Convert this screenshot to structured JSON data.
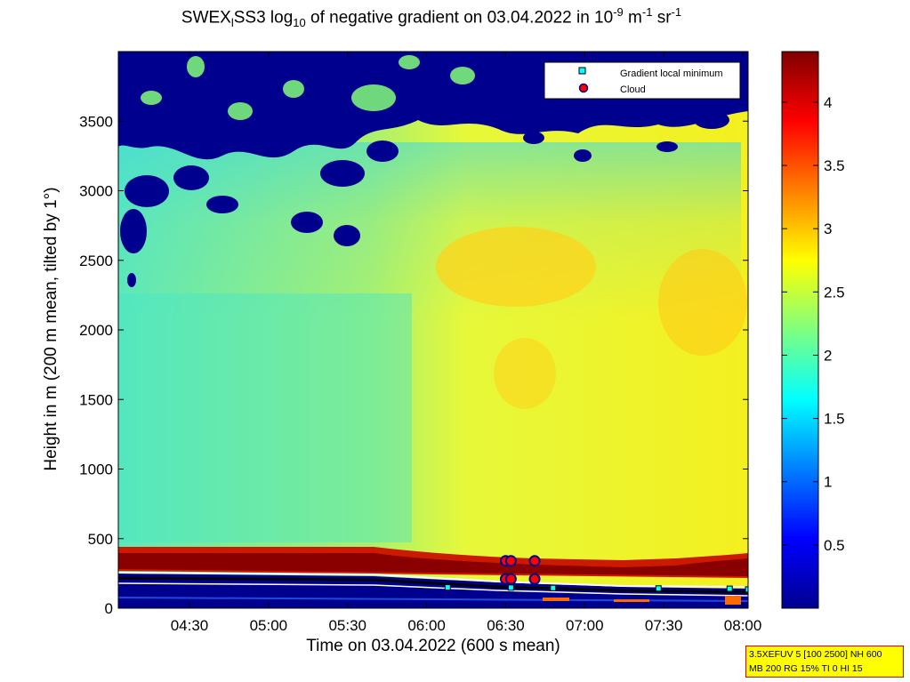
{
  "title": {
    "prefix": "SWEX",
    "sub1": "l",
    "mid": "SS3 log",
    "sub2": "10",
    "rest": " of negative gradient on 03.04.2022 in 10",
    "sup1": "-9",
    "unit1": " m",
    "sup2": "-1",
    "unit2": " sr",
    "sup3": "-1"
  },
  "chart_data": {
    "type": "heatmap",
    "xlabel": "Time on 03.04.2022 (600 s mean)",
    "ylabel": "Height in m (200 m mean, tilted by 1°)",
    "x_range": [
      "04:03",
      "08:02"
    ],
    "xticks": [
      "04:30",
      "05:00",
      "05:30",
      "06:00",
      "06:30",
      "07:00",
      "07:30",
      "08:00"
    ],
    "ylim": [
      0,
      4000
    ],
    "yticks": [
      0,
      500,
      1000,
      1500,
      2000,
      2500,
      3000,
      3500
    ],
    "colorbar": {
      "range": [
        0,
        4.4
      ],
      "ticks": [
        "0.5",
        "1",
        "1.5",
        "2",
        "2.5",
        "3",
        "3.5",
        "4"
      ],
      "colormap": "jet"
    },
    "legend": {
      "position": "top-right",
      "entries": [
        {
          "label": "Gradient local minimum",
          "marker": "square",
          "color": "#00ffff"
        },
        {
          "label": "Cloud",
          "marker": "circle",
          "color": "#ff0000"
        }
      ]
    },
    "clouds": [
      {
        "time": "06:30",
        "height": 340
      },
      {
        "time": "06:32",
        "height": 340
      },
      {
        "time": "06:41",
        "height": 340
      },
      {
        "time": "06:30",
        "height": 210
      },
      {
        "time": "06:32",
        "height": 210
      },
      {
        "time": "06:41",
        "height": 210
      }
    ]
  },
  "info_box": {
    "line1": "3.5XEFUV 5 [100 2500] NH 600",
    "line2": "MB 200 RG 15% TI 0 HI 15"
  }
}
